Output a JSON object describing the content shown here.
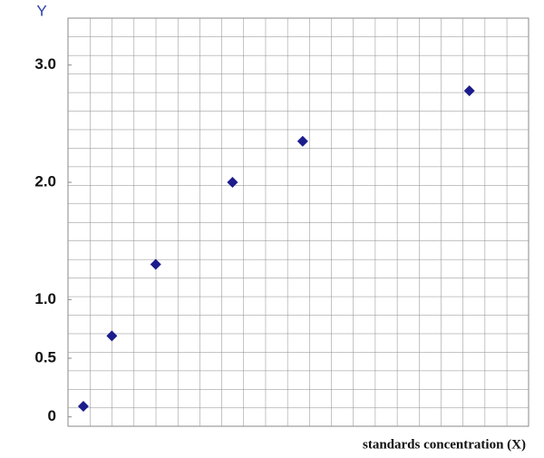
{
  "chart_data": {
    "type": "scatter",
    "y_label": "Y",
    "x_label": "standards concentration (X)",
    "x": [
      0.7,
      2.0,
      4.0,
      7.5,
      10.7,
      18.3
    ],
    "values": [
      0.09,
      0.69,
      1.3,
      2.0,
      2.35,
      2.78
    ],
    "color": "#1c1c8c",
    "xlim": [
      0,
      21
    ],
    "ylim": [
      -0.08,
      3.4
    ],
    "yticks": [
      0,
      0.5,
      {
        "value": 1,
        "label": "1.0"
      },
      {
        "value": 2,
        "label": "2.0"
      },
      {
        "value": 3,
        "label": "3.0"
      }
    ]
  }
}
